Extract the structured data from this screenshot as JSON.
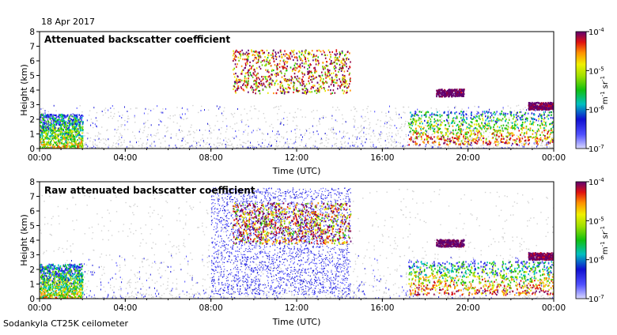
{
  "header": {
    "date": "18 Apr 2017"
  },
  "footer": {
    "instrument": "Sodankyla CT25K ceilometer"
  },
  "colors": {
    "colormap": [
      "#c8c8ff",
      "#4a4aff",
      "#1a1ad8",
      "#00bfbf",
      "#10c010",
      "#70d000",
      "#e8e800",
      "#ff9000",
      "#e01010",
      "#900040",
      "#600070"
    ],
    "noise_gray": "#d2d2d2",
    "axes": "#000000"
  },
  "chart_data": [
    {
      "type": "heatmap",
      "title": "Attenuated backscatter coefficient",
      "xlabel": "Time (UTC)",
      "ylabel": "Height (km)",
      "xticks": [
        "00:00",
        "04:00",
        "08:00",
        "12:00",
        "16:00",
        "20:00",
        "00:00"
      ],
      "yticks": [
        "0",
        "1",
        "2",
        "3",
        "4",
        "5",
        "6",
        "7",
        "8"
      ],
      "xlim_hours": [
        0,
        24
      ],
      "ylim_km": [
        0,
        8
      ],
      "colorbar": {
        "min_label": "10",
        "min_exp": "-7",
        "max_label": "10",
        "max_exp": "-4",
        "ticks": [
          {
            "base": "10",
            "exp": "-7"
          },
          {
            "base": "10",
            "exp": "-6"
          },
          {
            "base": "10",
            "exp": "-5"
          },
          {
            "base": "10",
            "exp": "-4"
          }
        ],
        "unit": "m",
        "unit_exp1": "-1",
        "unit_mid": " sr",
        "unit_exp2": "-1",
        "scale": "log",
        "range": [
          1e-07,
          0.0001
        ]
      },
      "features": [
        {
          "t0": 0,
          "t1": 2,
          "h0": 0,
          "h1": 2.4,
          "level": 1.2,
          "kind": "boundary"
        },
        {
          "t0": 9,
          "t1": 14.5,
          "h0": 3.8,
          "h1": 6.8,
          "level": 2.5,
          "kind": "cloud"
        },
        {
          "t0": 17.2,
          "t1": 24,
          "h0": 0.3,
          "h1": 2.6,
          "level": 2.0,
          "kind": "boundary"
        },
        {
          "t0": 18.5,
          "t1": 19.8,
          "h0": 3.6,
          "h1": 4.1,
          "level": 2.8,
          "kind": "layer"
        },
        {
          "t0": 22.8,
          "t1": 24,
          "h0": 2.7,
          "h1": 3.2,
          "level": 2.6,
          "kind": "layer"
        }
      ]
    },
    {
      "type": "heatmap",
      "title": "Raw attenuated backscatter coefficient",
      "xlabel": "Time (UTC)",
      "ylabel": "Height (km)",
      "xticks": [
        "00:00",
        "04:00",
        "08:00",
        "12:00",
        "16:00",
        "20:00",
        "00:00"
      ],
      "yticks": [
        "0",
        "1",
        "2",
        "3",
        "4",
        "5",
        "6",
        "7",
        "8"
      ],
      "xlim_hours": [
        0,
        24
      ],
      "ylim_km": [
        0,
        8
      ],
      "colorbar": {
        "min_label": "10",
        "min_exp": "-7",
        "max_label": "10",
        "max_exp": "-4",
        "ticks": [
          {
            "base": "10",
            "exp": "-7"
          },
          {
            "base": "10",
            "exp": "-6"
          },
          {
            "base": "10",
            "exp": "-5"
          },
          {
            "base": "10",
            "exp": "-4"
          }
        ],
        "unit": "m",
        "unit_exp1": "-1",
        "unit_mid": " sr",
        "unit_exp2": "-1",
        "scale": "log",
        "range": [
          1e-07,
          0.0001
        ]
      },
      "features": [
        {
          "t0": 0,
          "t1": 2,
          "h0": 0,
          "h1": 2.4,
          "level": 1.2,
          "kind": "boundary"
        },
        {
          "t0": 8,
          "t1": 14.5,
          "h0": 0.3,
          "h1": 7.6,
          "level": 0.6,
          "kind": "noise"
        },
        {
          "t0": 9,
          "t1": 14.5,
          "h0": 3.8,
          "h1": 6.6,
          "level": 2.5,
          "kind": "cloud"
        },
        {
          "t0": 17.2,
          "t1": 24,
          "h0": 0.3,
          "h1": 2.6,
          "level": 2.0,
          "kind": "boundary"
        },
        {
          "t0": 18.5,
          "t1": 19.8,
          "h0": 3.6,
          "h1": 4.1,
          "level": 2.8,
          "kind": "layer"
        },
        {
          "t0": 22.8,
          "t1": 24,
          "h0": 2.7,
          "h1": 3.2,
          "level": 2.6,
          "kind": "layer"
        }
      ]
    }
  ]
}
